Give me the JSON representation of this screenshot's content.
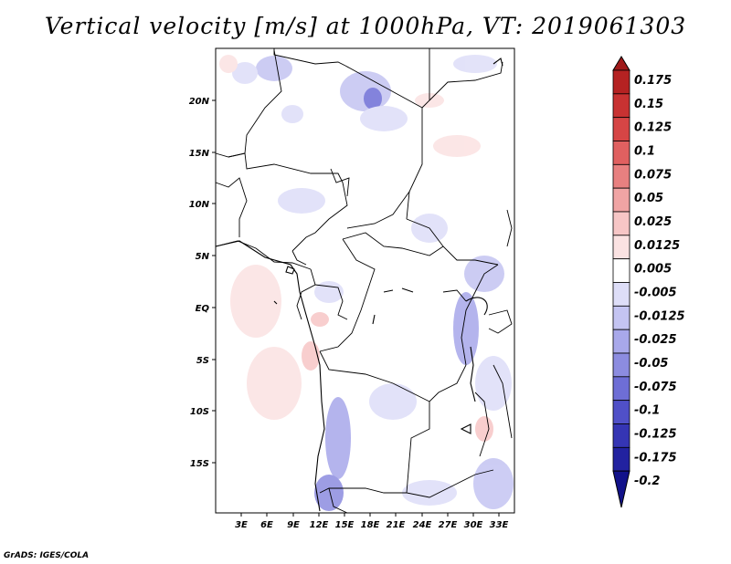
{
  "title": "Vertical velocity [m/s] at 1000hPa, VT: 2019061303",
  "credit": "GrADS: IGES/COLA",
  "map": {
    "lat_labels": [
      "20N",
      "15N",
      "10N",
      "5N",
      "EQ",
      "5S",
      "10S",
      "15S"
    ],
    "lon_labels": [
      "3E",
      "6E",
      "9E",
      "12E",
      "15E",
      "18E",
      "21E",
      "24E",
      "27E",
      "30E",
      "33E"
    ]
  },
  "colorbar": {
    "labels": [
      "0.175",
      "0.15",
      "0.125",
      "0.1",
      "0.075",
      "0.05",
      "0.025",
      "0.0125",
      "0.005",
      "-0.005",
      "-0.0125",
      "-0.025",
      "-0.05",
      "-0.075",
      "-0.1",
      "-0.125",
      "-0.175",
      "-0.2"
    ],
    "colors": [
      "#a01a1a",
      "#b52222",
      "#c83232",
      "#d64545",
      "#e06060",
      "#e88080",
      "#f0a4a4",
      "#f7c6c6",
      "#fbe2e2",
      "#ffffff",
      "#dedef8",
      "#c4c4f2",
      "#a8a8ea",
      "#8c8ce0",
      "#6e6ed6",
      "#5050c8",
      "#3535b4",
      "#2222a0",
      "#12128a"
    ]
  }
}
